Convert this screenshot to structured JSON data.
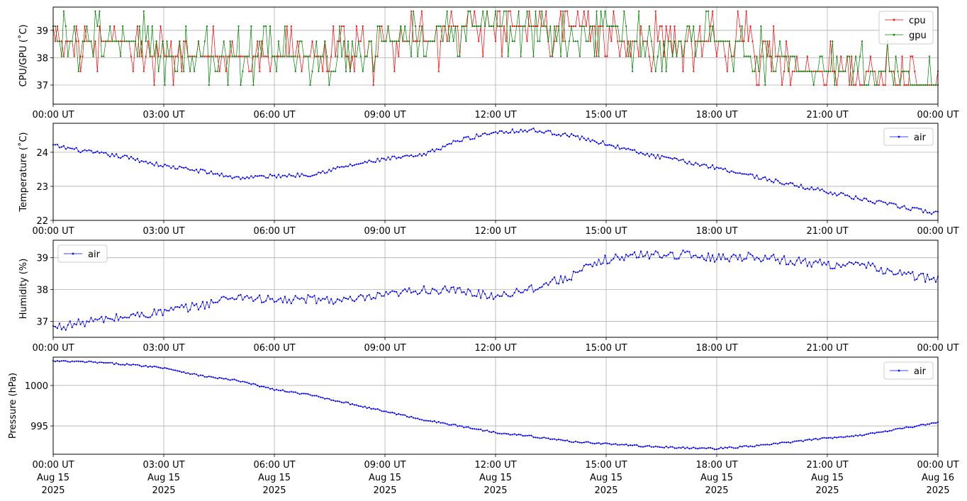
{
  "x_ticks": [
    "00:00 UT",
    "03:00 UT",
    "06:00 UT",
    "09:00 UT",
    "12:00 UT",
    "15:00 UT",
    "18:00 UT",
    "21:00 UT",
    "00:00 UT"
  ],
  "x_dates": [
    "Aug 15",
    "Aug 15",
    "Aug 15",
    "Aug 15",
    "Aug 15",
    "Aug 15",
    "Aug 15",
    "Aug 15",
    "Aug 16"
  ],
  "x_years": [
    "2025",
    "2025",
    "2025",
    "2025",
    "2025",
    "2025",
    "2025",
    "2025",
    "2025"
  ],
  "chart_data": [
    {
      "type": "line",
      "ylabel": "CPU/GPU (˚C)",
      "ylim": [
        36.3,
        39.85
      ],
      "yticks": [
        37,
        38,
        39
      ],
      "xlim": [
        "2025-08-15T00:00Z",
        "2025-08-16T00:00Z"
      ],
      "grid": true,
      "legend": "top-right",
      "series": [
        {
          "name": "cpu",
          "color": "#ff0000",
          "x": [
            "2025-08-15T00:00Z",
            "2025-08-15T01:00Z",
            "2025-08-15T02:00Z",
            "2025-08-15T03:00Z",
            "2025-08-15T04:00Z",
            "2025-08-15T05:00Z",
            "2025-08-15T06:00Z",
            "2025-08-15T07:00Z",
            "2025-08-15T08:00Z",
            "2025-08-15T09:00Z",
            "2025-08-15T10:00Z",
            "2025-08-15T11:00Z",
            "2025-08-15T12:00Z",
            "2025-08-15T13:00Z",
            "2025-08-15T14:00Z",
            "2025-08-15T15:00Z",
            "2025-08-15T16:00Z",
            "2025-08-15T17:00Z",
            "2025-08-15T18:00Z",
            "2025-08-15T19:00Z",
            "2025-08-15T20:00Z",
            "2025-08-15T21:00Z",
            "2025-08-15T22:00Z",
            "2025-08-15T23:00Z",
            "2025-08-16T00:00Z"
          ],
          "values": [
            38.6,
            38.6,
            38.5,
            38.1,
            38.0,
            38.0,
            38.1,
            38.0,
            38.1,
            38.4,
            38.6,
            39.1,
            39.1,
            39.1,
            39.1,
            39.0,
            38.6,
            38.6,
            38.6,
            38.3,
            37.6,
            37.5,
            37.4,
            37.2,
            37.0
          ]
        },
        {
          "name": "gpu",
          "color": "#008000",
          "x": [
            "2025-08-15T00:00Z",
            "2025-08-15T01:00Z",
            "2025-08-15T02:00Z",
            "2025-08-15T03:00Z",
            "2025-08-15T04:00Z",
            "2025-08-15T05:00Z",
            "2025-08-15T06:00Z",
            "2025-08-15T07:00Z",
            "2025-08-15T08:00Z",
            "2025-08-15T09:00Z",
            "2025-08-15T10:00Z",
            "2025-08-15T11:00Z",
            "2025-08-15T12:00Z",
            "2025-08-15T13:00Z",
            "2025-08-15T14:00Z",
            "2025-08-15T15:00Z",
            "2025-08-15T16:00Z",
            "2025-08-15T17:00Z",
            "2025-08-15T18:00Z",
            "2025-08-15T19:00Z",
            "2025-08-15T20:00Z",
            "2025-08-15T21:00Z",
            "2025-08-15T22:00Z",
            "2025-08-15T23:00Z",
            "2025-08-16T00:00Z"
          ],
          "values": [
            38.7,
            38.6,
            38.5,
            38.2,
            38.1,
            38.1,
            38.2,
            38.1,
            38.2,
            38.5,
            38.7,
            39.2,
            39.3,
            39.3,
            39.2,
            39.1,
            38.7,
            38.6,
            38.6,
            38.2,
            37.8,
            37.6,
            37.5,
            37.3,
            37.1
          ]
        }
      ]
    },
    {
      "type": "line",
      "ylabel": "Temperature (˚C)",
      "ylim": [
        22.0,
        24.85
      ],
      "yticks": [
        22,
        23,
        24
      ],
      "xlim": [
        "2025-08-15T00:00Z",
        "2025-08-16T00:00Z"
      ],
      "grid": true,
      "legend": "top-right",
      "series": [
        {
          "name": "air",
          "color": "#0000ff",
          "x": [
            "2025-08-15T00:00Z",
            "2025-08-15T01:00Z",
            "2025-08-15T02:00Z",
            "2025-08-15T03:00Z",
            "2025-08-15T04:00Z",
            "2025-08-15T05:00Z",
            "2025-08-15T06:00Z",
            "2025-08-15T07:00Z",
            "2025-08-15T08:00Z",
            "2025-08-15T09:00Z",
            "2025-08-15T10:00Z",
            "2025-08-15T11:00Z",
            "2025-08-15T12:00Z",
            "2025-08-15T13:00Z",
            "2025-08-15T14:00Z",
            "2025-08-15T15:00Z",
            "2025-08-15T16:00Z",
            "2025-08-15T17:00Z",
            "2025-08-15T18:00Z",
            "2025-08-15T19:00Z",
            "2025-08-15T20:00Z",
            "2025-08-15T21:00Z",
            "2025-08-15T22:00Z",
            "2025-08-15T23:00Z",
            "2025-08-16T00:00Z"
          ],
          "values": [
            24.2,
            24.0,
            23.85,
            23.6,
            23.45,
            23.25,
            23.3,
            23.35,
            23.6,
            23.8,
            23.9,
            24.35,
            24.6,
            24.65,
            24.5,
            24.25,
            23.95,
            23.75,
            23.55,
            23.3,
            23.05,
            22.85,
            22.6,
            22.4,
            22.2
          ]
        }
      ]
    },
    {
      "type": "line",
      "ylabel": "Humidity (%)",
      "ylim": [
        36.5,
        39.55
      ],
      "yticks": [
        37,
        38,
        39
      ],
      "xlim": [
        "2025-08-15T00:00Z",
        "2025-08-16T00:00Z"
      ],
      "grid": true,
      "legend": "top-left",
      "series": [
        {
          "name": "air",
          "color": "#0000ff",
          "x": [
            "2025-08-15T00:00Z",
            "2025-08-15T01:00Z",
            "2025-08-15T02:00Z",
            "2025-08-15T03:00Z",
            "2025-08-15T04:00Z",
            "2025-08-15T05:00Z",
            "2025-08-15T06:00Z",
            "2025-08-15T07:00Z",
            "2025-08-15T08:00Z",
            "2025-08-15T09:00Z",
            "2025-08-15T10:00Z",
            "2025-08-15T11:00Z",
            "2025-08-15T12:00Z",
            "2025-08-15T13:00Z",
            "2025-08-15T14:00Z",
            "2025-08-15T15:00Z",
            "2025-08-15T16:00Z",
            "2025-08-15T17:00Z",
            "2025-08-15T18:00Z",
            "2025-08-15T19:00Z",
            "2025-08-15T20:00Z",
            "2025-08-15T21:00Z",
            "2025-08-15T22:00Z",
            "2025-08-15T23:00Z",
            "2025-08-16T00:00Z"
          ],
          "values": [
            36.8,
            37.0,
            37.15,
            37.3,
            37.5,
            37.8,
            37.65,
            37.7,
            37.65,
            37.8,
            38.0,
            37.95,
            37.8,
            38.05,
            38.4,
            38.95,
            39.1,
            39.1,
            39.0,
            39.05,
            38.9,
            38.8,
            38.75,
            38.5,
            38.3
          ]
        }
      ]
    },
    {
      "type": "line",
      "ylabel": "Pressure (hPa)",
      "ylim": [
        991.5,
        1003.5
      ],
      "yticks": [
        995,
        1000
      ],
      "xlim": [
        "2025-08-15T00:00Z",
        "2025-08-16T00:00Z"
      ],
      "grid": true,
      "legend": "top-right",
      "series": [
        {
          "name": "air",
          "color": "#0000ff",
          "x": [
            "2025-08-15T00:00Z",
            "2025-08-15T01:00Z",
            "2025-08-15T02:00Z",
            "2025-08-15T03:00Z",
            "2025-08-15T04:00Z",
            "2025-08-15T05:00Z",
            "2025-08-15T06:00Z",
            "2025-08-15T07:00Z",
            "2025-08-15T08:00Z",
            "2025-08-15T09:00Z",
            "2025-08-15T10:00Z",
            "2025-08-15T11:00Z",
            "2025-08-15T12:00Z",
            "2025-08-15T13:00Z",
            "2025-08-15T14:00Z",
            "2025-08-15T15:00Z",
            "2025-08-15T16:00Z",
            "2025-08-15T17:00Z",
            "2025-08-15T18:00Z",
            "2025-08-15T19:00Z",
            "2025-08-15T20:00Z",
            "2025-08-15T21:00Z",
            "2025-08-15T22:00Z",
            "2025-08-15T23:00Z",
            "2025-08-16T00:00Z"
          ],
          "values": [
            1003.0,
            1002.9,
            1002.6,
            1002.2,
            1001.2,
            1000.6,
            999.5,
            998.8,
            997.8,
            996.8,
            995.8,
            995.0,
            994.2,
            993.7,
            993.1,
            992.8,
            992.5,
            992.3,
            992.2,
            992.5,
            993.0,
            993.5,
            993.9,
            994.7,
            995.4
          ]
        }
      ]
    }
  ]
}
